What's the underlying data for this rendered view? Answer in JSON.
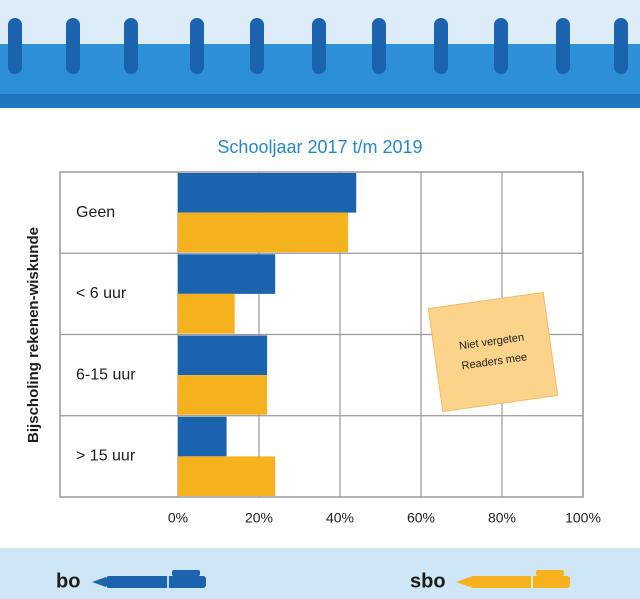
{
  "chart_data": {
    "type": "hbar",
    "title": "Schooljaar 2017 t/m 2019",
    "y_label": "Bijscholing rekenen-wiskunde",
    "categories": [
      "Geen",
      "< 6 uur",
      "6-15 uur",
      "> 15 uur"
    ],
    "series": [
      {
        "name": "bo",
        "color": "#1b63ad",
        "values": [
          44,
          24,
          22,
          12
        ]
      },
      {
        "name": "sbo",
        "color": "#f6b21c",
        "values": [
          42,
          14,
          22,
          24
        ]
      }
    ],
    "xlim": [
      0,
      100
    ],
    "xticks": [
      {
        "value": 0,
        "label": "0%"
      },
      {
        "value": 20,
        "label": "20%"
      },
      {
        "value": 40,
        "label": "40%"
      },
      {
        "value": 60,
        "label": "60%"
      },
      {
        "value": 80,
        "label": "80%"
      },
      {
        "value": 100,
        "label": "100%"
      }
    ],
    "grid": true,
    "note": [
      "Niet vergeten",
      "Readers mee"
    ]
  }
}
